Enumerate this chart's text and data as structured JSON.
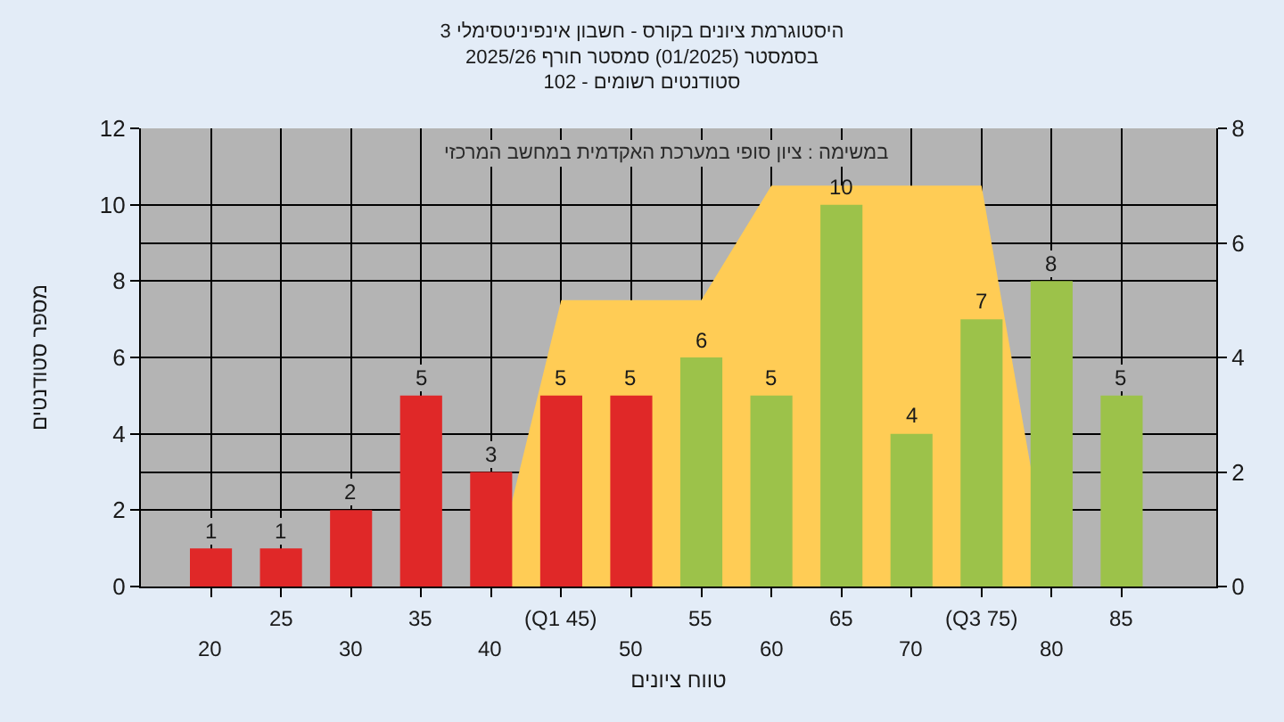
{
  "chart_data": {
    "type": "bar",
    "title": "היסטוגרמת ציונים בקורס - חשבון אינפיניטסימלי 3",
    "subtitle": "בסמסטר (01/2025) סמסטר חורף 2025/26\nסטודנטים רשומים - 102",
    "annotations": [
      "במשימה : ציון סופי במערכת האקדמית במחשב המרכזי"
    ],
    "xlabel": "טווח ציונים",
    "ylabel": "מספר סטודנטים",
    "categories": [
      "20",
      "25",
      "30",
      "35",
      "40",
      "(Q1 45)",
      "50",
      "55",
      "60",
      "65",
      "70",
      "(Q3 75)",
      "80",
      "85"
    ],
    "series": [
      {
        "type": "area",
        "axis": "y2",
        "color": "#ffcc55",
        "values": [
          null,
          null,
          null,
          null,
          0,
          5,
          5,
          5,
          7,
          null,
          7,
          7,
          0,
          null
        ]
      },
      {
        "colors": [
          "#e02828",
          "#e02828",
          "#e02828",
          "#e02828",
          "#e02828",
          "#e02828",
          "#e02828",
          "#9cc24a",
          "#9cc24a",
          "#9cc24a",
          "#9cc24a",
          "#9cc24a",
          "#9cc24a",
          "#9cc24a"
        ],
        "values": [
          1,
          1,
          2,
          5,
          3,
          5,
          5,
          6,
          5,
          10,
          4,
          7,
          8,
          5
        ],
        "value_labels": [
          "1",
          "1",
          "2",
          "5",
          "3",
          "5",
          "5",
          "6",
          "5",
          "10",
          "4",
          "7",
          "8",
          "5"
        ]
      }
    ],
    "ylim": [
      0,
      12
    ],
    "yticks": [
      0,
      2,
      4,
      6,
      8,
      10,
      12
    ],
    "y2lim": [
      0,
      8
    ],
    "y2ticks": [
      0,
      2,
      4,
      6,
      8
    ],
    "grid": true
  }
}
